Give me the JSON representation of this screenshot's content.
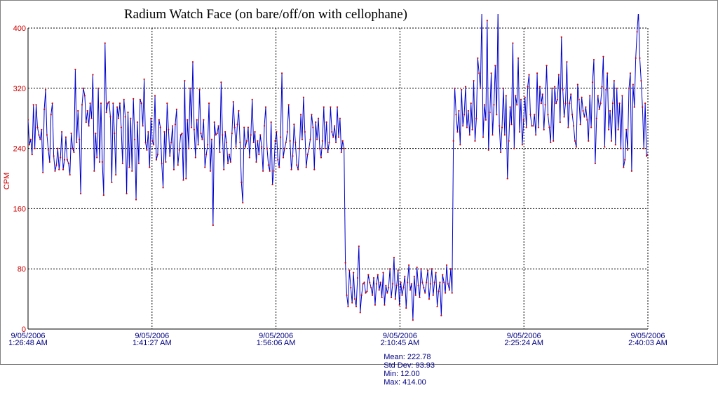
{
  "chart_data": {
    "type": "line",
    "title": "Radium Watch Face (on bare/off/on with cellophane)",
    "ylabel": "CPM",
    "xlabel": "",
    "ylim": [
      0,
      400
    ],
    "y_ticks": [
      0,
      80,
      160,
      240,
      320,
      400
    ],
    "x_ticks": [
      {
        "date": "9/05/2006",
        "time": "1:26:48 AM"
      },
      {
        "date": "9/05/2006",
        "time": "1:41:27 AM"
      },
      {
        "date": "9/05/2006",
        "time": "1:56:06 AM"
      },
      {
        "date": "9/05/2006",
        "time": "2:10:45 AM"
      },
      {
        "date": "9/05/2006",
        "time": "2:25:24 AM"
      },
      {
        "date": "9/05/2006",
        "time": "2:40:03 AM"
      }
    ],
    "grid": true,
    "series": [
      {
        "color": "#0000cc",
        "marker_color": "#cc0000",
        "values": [
          278,
          245,
          252,
          232,
          298,
          240,
          298,
          268,
          258,
          252,
          265,
          208,
          292,
          318,
          258,
          238,
          222,
          285,
          300,
          230,
          210,
          218,
          240,
          212,
          228,
          262,
          212,
          225,
          255,
          225,
          220,
          205,
          260,
          240,
          235,
          345,
          248,
          290,
          252,
          180,
          298,
          320,
          310,
          275,
          290,
          270,
          300,
          280,
          338,
          210,
          260,
          228,
          320,
          222,
          300,
          222,
          178,
          380,
          288,
          300,
          302,
          282,
          195,
          300,
          260,
          205,
          295,
          280,
          300,
          268,
          220,
          305,
          282,
          180,
          288,
          215,
          280,
          210,
          306,
          252,
          172,
          275,
          220,
          305,
          300,
          270,
          332,
          248,
          238,
          262,
          215,
          280,
          250,
          245,
          310,
          225,
          232,
          278,
          268,
          220,
          188,
          262,
          222,
          300,
          265,
          230,
          248,
          270,
          212,
          272,
          292,
          218,
          238,
          258,
          260,
          198,
          330,
          200,
          278,
          240,
          320,
          268,
          355,
          265,
          228,
          278,
          245,
          318,
          260,
          252,
          278,
          215,
          232,
          245,
          300,
          210,
          252,
          138,
          275,
          258,
          260,
          270,
          235,
          328,
          258,
          212,
          262,
          248,
          220,
          232,
          222,
          260,
          302,
          268,
          242,
          272,
          290,
          248,
          195,
          168,
          268,
          242,
          250,
          268,
          228,
          258,
          305,
          248,
          262,
          222,
          250,
          232,
          258,
          242,
          210,
          270,
          295,
          240,
          218,
          210,
          275,
          192,
          210,
          250,
          262,
          225,
          215,
          255,
          340,
          228,
          240,
          248,
          262,
          298,
          250,
          212,
          230,
          272,
          248,
          218,
          212,
          240,
          285,
          252,
          308,
          262,
          215,
          232,
          240,
          252,
          285,
          268,
          212,
          275,
          252,
          280,
          240,
          228,
          250,
          295,
          240,
          275,
          235,
          248,
          295,
          262,
          255,
          270,
          248,
          295,
          255,
          280,
          235,
          250,
          240,
          88,
          45,
          30,
          78,
          55,
          35,
          75,
          40,
          30,
          68,
          110,
          22,
          45,
          60,
          62,
          48,
          50,
          72,
          62,
          55,
          45,
          68,
          32,
          60,
          72,
          52,
          62,
          42,
          75,
          32,
          58,
          48,
          55,
          80,
          42,
          60,
          95,
          40,
          58,
          78,
          32,
          62,
          45,
          55,
          70,
          28,
          62,
          85,
          52,
          60,
          12,
          70,
          45,
          82,
          58,
          42,
          80,
          62,
          55,
          48,
          62,
          78,
          40,
          60,
          80,
          45,
          62,
          75,
          30,
          50,
          62,
          18,
          72,
          62,
          48,
          85,
          60,
          52,
          80,
          48,
          250,
          320,
          285,
          262,
          290,
          245,
          318,
          270,
          285,
          322,
          268,
          290,
          258,
          300,
          265,
          330,
          250,
          280,
          360,
          340,
          320,
          420,
          255,
          298,
          278,
          410,
          238,
          288,
          340,
          258,
          298,
          350,
          285,
          425,
          270,
          235,
          268,
          320,
          258,
          310,
          200,
          250,
          295,
          272,
          380,
          240,
          310,
          298,
          360,
          262,
          305,
          245,
          278,
          308,
          268,
          322,
          338,
          285,
          270,
          270,
          285,
          258,
          340,
          268,
          322,
          300,
          312,
          265,
          298,
          350,
          285,
          268,
          248,
          320,
          250,
          322,
          300,
          305,
          338,
          275,
          388,
          318,
          282,
          300,
          355,
          268,
          300,
          312,
          285,
          270,
          250,
          242,
          325,
          305,
          272,
          308,
          290,
          282,
          295,
          278,
          250,
          310,
          268,
          328,
          358,
          220,
          280,
          310,
          292,
          300,
          322,
          362,
          242,
          318,
          340,
          265,
          290,
          250,
          300,
          330,
          245,
          320,
          265,
          300,
          240,
          310,
          215,
          225,
          265,
          238,
          320,
          340,
          210,
          325,
          295,
          360,
          395,
          422,
          360,
          330,
          295,
          240,
          300,
          230,
          232
        ]
      }
    ]
  },
  "stats": {
    "mean": "Mean: 222.78",
    "std": "Std Dev: 93.93",
    "min": "Min: 12.00",
    "max": "Max: 414.00"
  }
}
